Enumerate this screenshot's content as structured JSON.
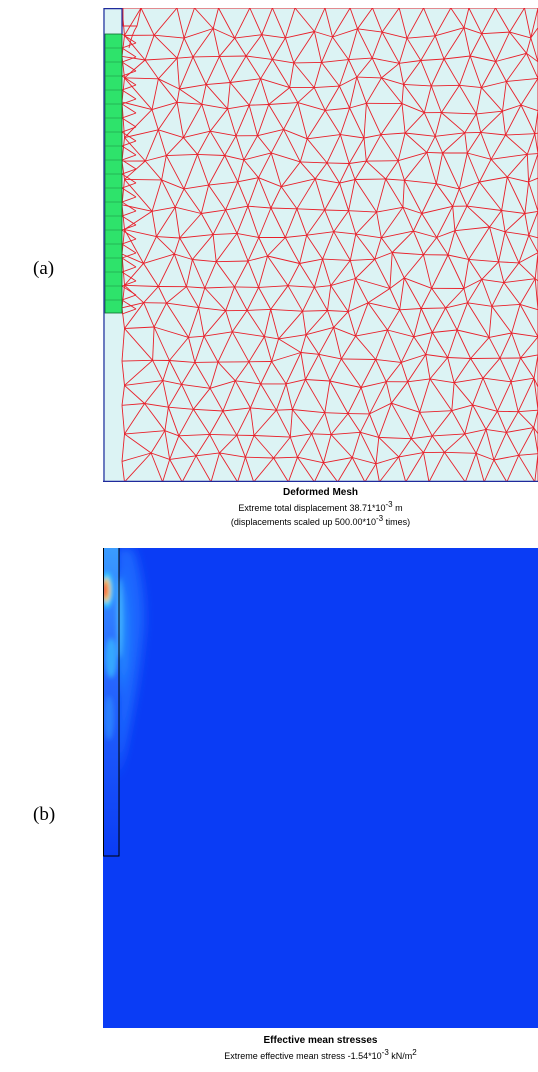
{
  "panel_a": {
    "label": "(a)",
    "title": "Deformed Mesh",
    "line1_prefix": "Extreme total displacement 38.71*10",
    "line1_exp": "-3",
    "line1_unit": " m",
    "line2_prefix": "(displacements scaled up 500.00*10",
    "line2_exp": "-3",
    "line2_suffix": " times)",
    "colors": {
      "background": "#dcf3f4",
      "mesh_line": "#e8202a",
      "pile": "#2ee36b",
      "boundary": "#1f2a9c"
    }
  },
  "panel_b": {
    "label": "(b)",
    "title": "Effective mean stresses",
    "line1_prefix": "Extreme effective mean stress -1.54*10",
    "line1_exp": "-3",
    "line1_unit": " kN/m",
    "line1_unit_exp": "2",
    "colors": {
      "field": "#0a3cf5",
      "peak": "#ff3a00",
      "mid": "#ffd000",
      "pile_outline": "#000000"
    }
  }
}
